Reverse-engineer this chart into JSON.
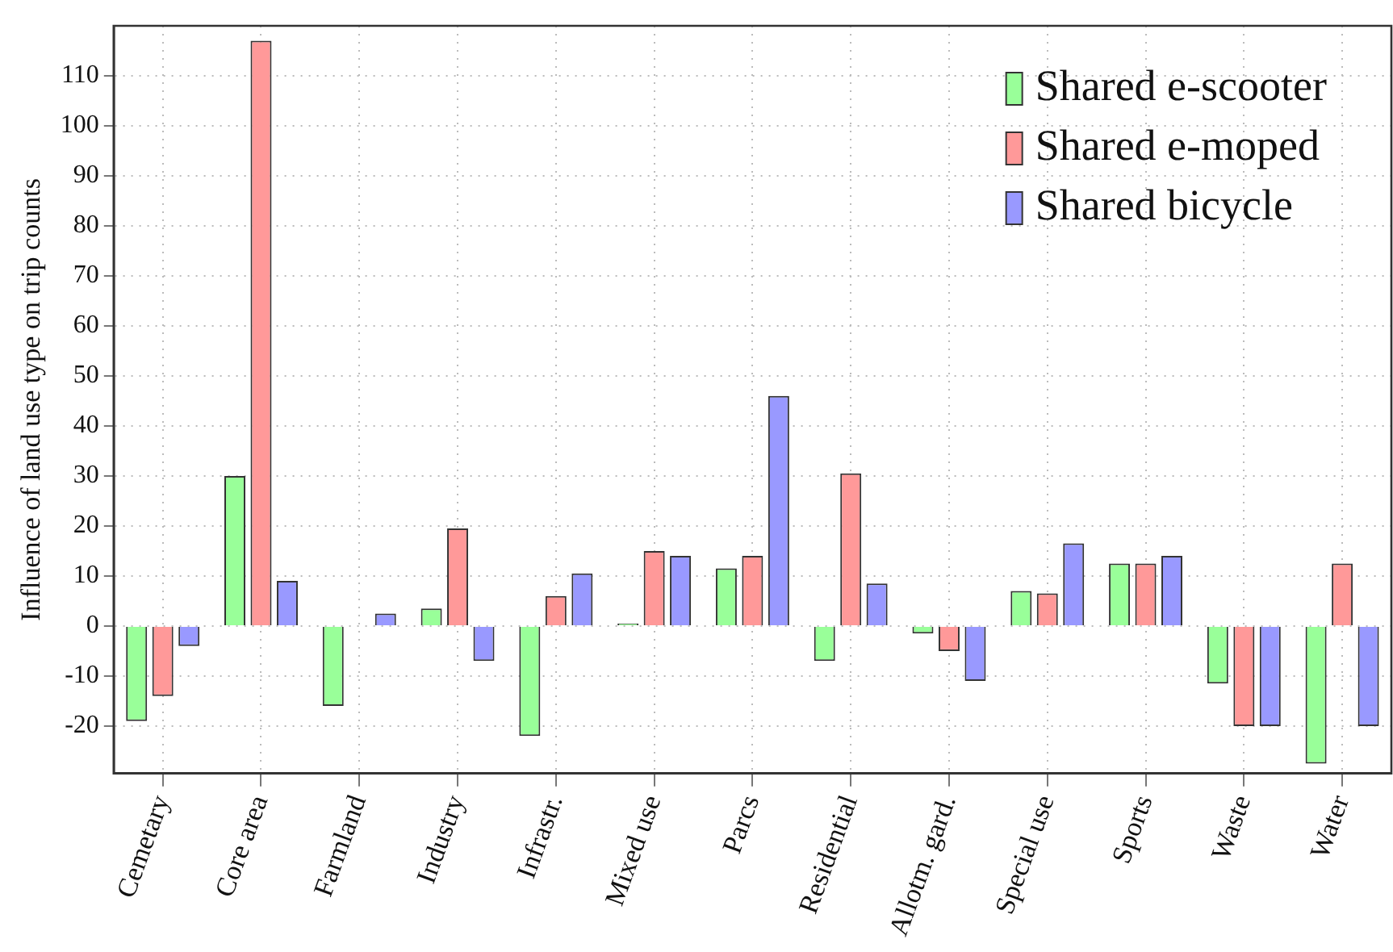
{
  "chart_data": {
    "type": "bar",
    "ylabel": "Influence of land use type on trip counts",
    "categories": [
      "Cemetary",
      "Core area",
      "Farmland",
      "Industry",
      "Infrastr.",
      "Mixed use",
      "Parcs",
      "Residential",
      "Allotm. gard.",
      "Special use",
      "Sports",
      "Waste",
      "Water"
    ],
    "series": [
      {
        "name": "Shared e-scooter",
        "color": "#99ff99",
        "values": [
          -19,
          30,
          -16,
          3.5,
          -22,
          0.5,
          11.5,
          -7,
          -1.5,
          7,
          12.5,
          -11.5,
          -27.5
        ]
      },
      {
        "name": "Shared e-moped",
        "color": "#ff9999",
        "values": [
          -14,
          117,
          0,
          19.5,
          6,
          15,
          14,
          30.5,
          -5,
          6.5,
          12.5,
          -20,
          12.5
        ]
      },
      {
        "name": "Shared bicycle",
        "color": "#9999ff",
        "values": [
          -4,
          9,
          2.5,
          -7,
          10.5,
          14,
          46,
          8.5,
          -11,
          16.5,
          14,
          -20,
          -20
        ]
      }
    ],
    "ylim": [
      -29.5,
      120
    ],
    "yticks": [
      -20,
      -10,
      0,
      10,
      20,
      30,
      40,
      50,
      60,
      70,
      80,
      90,
      100,
      110
    ],
    "grid": true,
    "legend": "top right"
  }
}
